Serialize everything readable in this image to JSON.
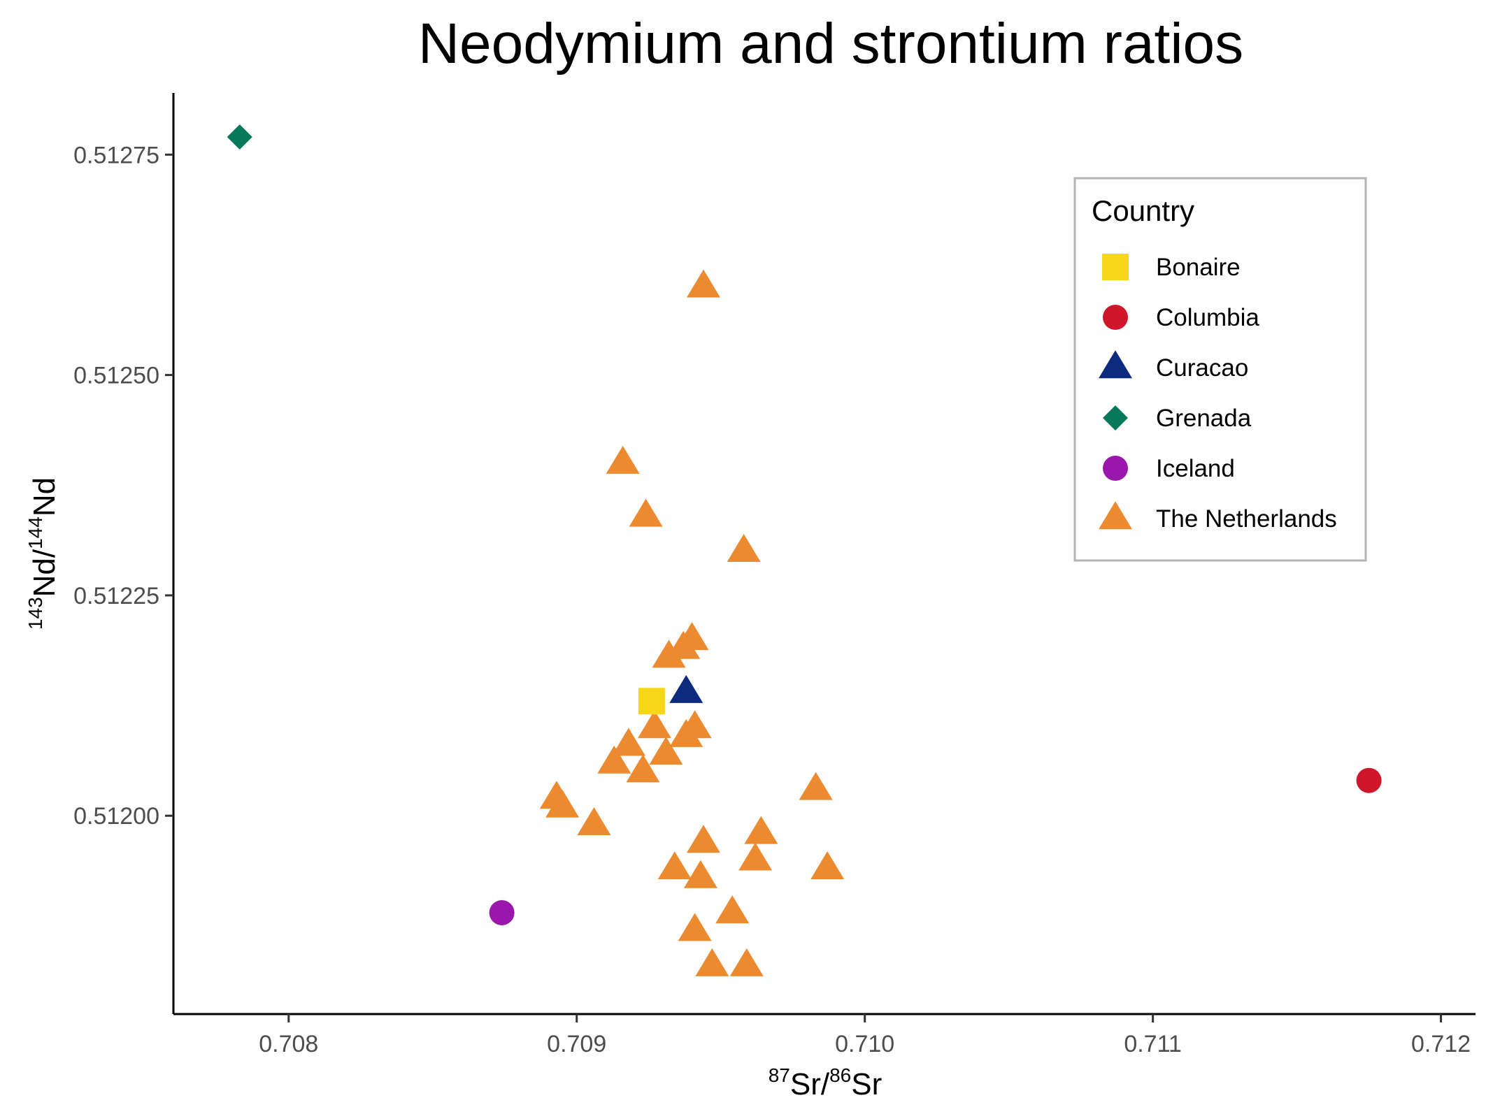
{
  "chart_data": {
    "type": "scatter",
    "title": "Neodymium and strontium ratios",
    "xlabel": {
      "sup1": "87",
      "base1": "Sr/",
      "sup2": "86",
      "base2": "Sr"
    },
    "ylabel": {
      "sup1": "143",
      "base1": "Nd/",
      "sup2": "144",
      "base2": "Nd"
    },
    "xlim": [
      0.7076,
      0.71212
    ],
    "ylim": [
      0.511775,
      0.51282
    ],
    "xticks": [
      {
        "value": 0.708,
        "label": "0.708"
      },
      {
        "value": 0.709,
        "label": "0.709"
      },
      {
        "value": 0.71,
        "label": "0.710"
      },
      {
        "value": 0.711,
        "label": "0.711"
      },
      {
        "value": 0.712,
        "label": "0.712"
      }
    ],
    "yticks": [
      {
        "value": 0.512,
        "label": "0.51200"
      },
      {
        "value": 0.51225,
        "label": "0.51225"
      },
      {
        "value": 0.5125,
        "label": "0.51250"
      },
      {
        "value": 0.51275,
        "label": "0.51275"
      }
    ],
    "grid": false,
    "legend": {
      "title": "Country",
      "position": "top-right"
    },
    "series": [
      {
        "name": "Bonaire",
        "shape": "square",
        "color": "#F6D619",
        "points": [
          {
            "x": 0.70926,
            "y": 0.51213
          }
        ]
      },
      {
        "name": "Columbia",
        "shape": "circle",
        "color": "#D0162A",
        "points": [
          {
            "x": 0.71175,
            "y": 0.51204
          }
        ]
      },
      {
        "name": "Curacao",
        "shape": "triangle",
        "color": "#0E2A7E",
        "points": [
          {
            "x": 0.70938,
            "y": 0.51214
          }
        ]
      },
      {
        "name": "Grenada",
        "shape": "diamond",
        "color": "#05795A",
        "points": [
          {
            "x": 0.70783,
            "y": 0.51277
          }
        ]
      },
      {
        "name": "Iceland",
        "shape": "circle",
        "color": "#9B17AB",
        "points": [
          {
            "x": 0.70874,
            "y": 0.51189
          }
        ]
      },
      {
        "name": "The Netherlands",
        "shape": "triangle",
        "color": "#EB8A2F",
        "points": [
          {
            "x": 0.70944,
            "y": 0.5126
          },
          {
            "x": 0.70916,
            "y": 0.5124
          },
          {
            "x": 0.70924,
            "y": 0.51234
          },
          {
            "x": 0.70958,
            "y": 0.5123
          },
          {
            "x": 0.7094,
            "y": 0.5122
          },
          {
            "x": 0.70937,
            "y": 0.51219
          },
          {
            "x": 0.70932,
            "y": 0.51218
          },
          {
            "x": 0.70927,
            "y": 0.5121
          },
          {
            "x": 0.70941,
            "y": 0.5121
          },
          {
            "x": 0.70938,
            "y": 0.51209
          },
          {
            "x": 0.70918,
            "y": 0.51208
          },
          {
            "x": 0.70931,
            "y": 0.51207
          },
          {
            "x": 0.70913,
            "y": 0.51206
          },
          {
            "x": 0.70923,
            "y": 0.51205
          },
          {
            "x": 0.70983,
            "y": 0.51203
          },
          {
            "x": 0.70893,
            "y": 0.51202
          },
          {
            "x": 0.70895,
            "y": 0.51201
          },
          {
            "x": 0.70906,
            "y": 0.51199
          },
          {
            "x": 0.70964,
            "y": 0.51198
          },
          {
            "x": 0.70944,
            "y": 0.51197
          },
          {
            "x": 0.70962,
            "y": 0.51195
          },
          {
            "x": 0.70934,
            "y": 0.51194
          },
          {
            "x": 0.70987,
            "y": 0.51194
          },
          {
            "x": 0.70943,
            "y": 0.51193
          },
          {
            "x": 0.70954,
            "y": 0.51189
          },
          {
            "x": 0.70941,
            "y": 0.51187
          },
          {
            "x": 0.70947,
            "y": 0.51183
          },
          {
            "x": 0.70959,
            "y": 0.51183
          }
        ]
      }
    ]
  }
}
